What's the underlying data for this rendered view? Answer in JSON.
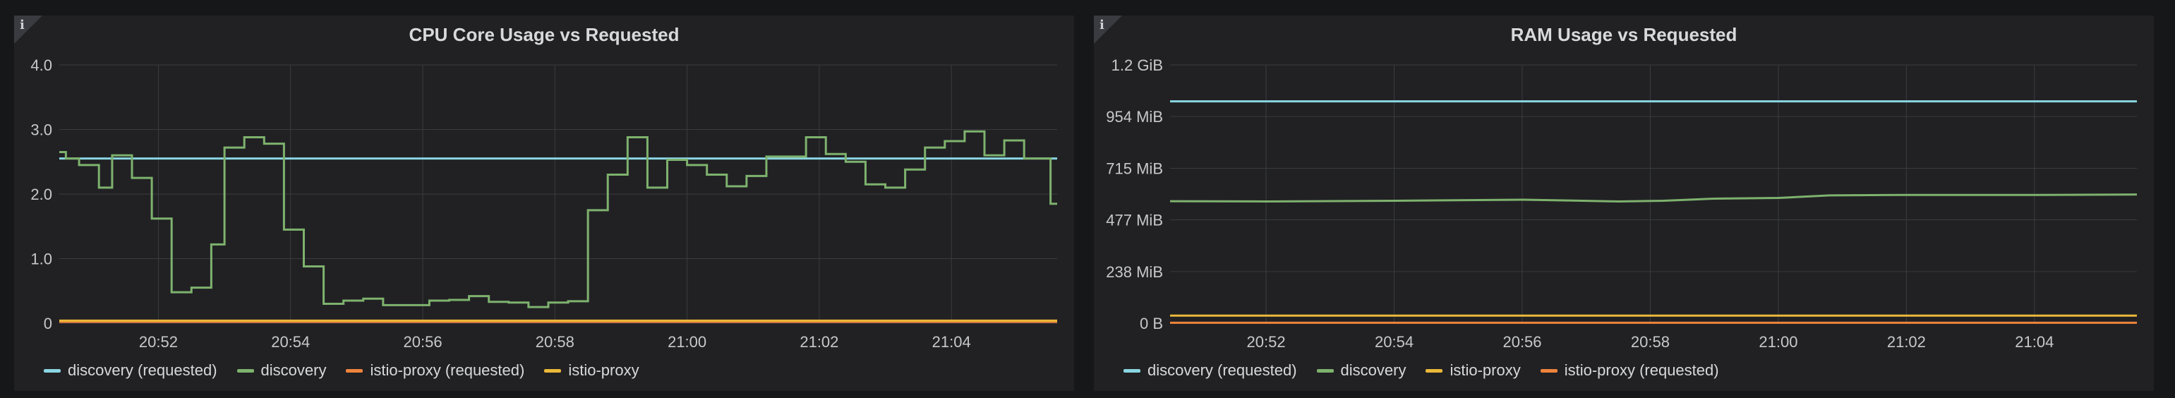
{
  "colors": {
    "background": "#161719",
    "panel": "#212124",
    "grid": "#3a3b3f",
    "text": "#d8d9da",
    "tick": "#c7c8ca",
    "discovery_requested": "#8ad6e2",
    "discovery": "#7eb26d",
    "istio_proxy": "#eab839",
    "istio_proxy_requested": "#ef843c"
  },
  "info_glyph": "i",
  "chart_data": [
    {
      "type": "line",
      "title": "CPU Core Usage vs Requested",
      "x_ticks": [
        "20:52",
        "20:54",
        "20:56",
        "20:58",
        "21:00",
        "21:02",
        "21:04"
      ],
      "x_tick_minutes": [
        52,
        54,
        56,
        58,
        60,
        62,
        64
      ],
      "xlim_minutes": [
        50.5,
        65.6
      ],
      "ylim": [
        0,
        4.0
      ],
      "y_ticks": [
        {
          "value": 0,
          "label": "0"
        },
        {
          "value": 1,
          "label": "1.0"
        },
        {
          "value": 2,
          "label": "2.0"
        },
        {
          "value": 3,
          "label": "3.0"
        },
        {
          "value": 4,
          "label": "4.0"
        }
      ],
      "legend_position": "bottom-left",
      "series": [
        {
          "name": "discovery (requested)",
          "color": "#8ad6e2",
          "step": false,
          "x": [
            50.5,
            65.6
          ],
          "y": [
            2.55,
            2.55
          ]
        },
        {
          "name": "discovery",
          "color": "#7eb26d",
          "step": true,
          "x": [
            50.5,
            50.6,
            50.8,
            51.1,
            51.3,
            51.6,
            51.9,
            52.2,
            52.5,
            52.8,
            53.0,
            53.3,
            53.6,
            53.9,
            54.2,
            54.5,
            54.8,
            55.1,
            55.4,
            55.8,
            56.1,
            56.4,
            56.7,
            57.0,
            57.3,
            57.6,
            57.9,
            58.2,
            58.5,
            58.8,
            59.1,
            59.4,
            59.7,
            60.0,
            60.3,
            60.6,
            60.9,
            61.2,
            61.5,
            61.8,
            62.1,
            62.4,
            62.7,
            63.0,
            63.3,
            63.6,
            63.9,
            64.2,
            64.5,
            64.8,
            65.1,
            65.5,
            65.6
          ],
          "y": [
            2.65,
            2.55,
            2.45,
            2.1,
            2.6,
            2.25,
            1.62,
            0.48,
            0.55,
            1.22,
            2.72,
            2.88,
            2.78,
            1.45,
            0.88,
            0.3,
            0.35,
            0.38,
            0.28,
            0.28,
            0.35,
            0.36,
            0.42,
            0.33,
            0.32,
            0.25,
            0.32,
            0.34,
            1.75,
            2.3,
            2.88,
            2.1,
            2.53,
            2.45,
            2.3,
            2.12,
            2.28,
            2.58,
            2.58,
            2.88,
            2.62,
            2.5,
            2.15,
            2.1,
            2.38,
            2.72,
            2.82,
            2.97,
            2.6,
            2.83,
            2.55,
            1.85,
            1.85
          ]
        },
        {
          "name": "istio-proxy (requested)",
          "color": "#ef843c",
          "step": false,
          "x": [
            50.5,
            65.6
          ],
          "y": [
            0.02,
            0.02
          ]
        },
        {
          "name": "istio-proxy",
          "color": "#eab839",
          "step": false,
          "x": [
            50.5,
            65.6
          ],
          "y": [
            0.04,
            0.04
          ]
        }
      ]
    },
    {
      "type": "line",
      "title": "RAM Usage vs Requested",
      "x_ticks": [
        "20:52",
        "20:54",
        "20:56",
        "20:58",
        "21:00",
        "21:02",
        "21:04"
      ],
      "x_tick_minutes": [
        52,
        54,
        56,
        58,
        60,
        62,
        64
      ],
      "xlim_minutes": [
        50.5,
        65.6
      ],
      "ylim_mib": [
        0,
        1192
      ],
      "y_ticks": [
        {
          "value": 0,
          "label": "0 B"
        },
        {
          "value": 238,
          "label": "238 MiB"
        },
        {
          "value": 477,
          "label": "477 MiB"
        },
        {
          "value": 715,
          "label": "715 MiB"
        },
        {
          "value": 954,
          "label": "954 MiB"
        },
        {
          "value": 1192,
          "label": "1.2 GiB"
        }
      ],
      "legend_position": "bottom-left",
      "series": [
        {
          "name": "discovery (requested)",
          "color": "#8ad6e2",
          "step": false,
          "x": [
            50.5,
            65.6
          ],
          "y": [
            1024,
            1024
          ]
        },
        {
          "name": "discovery",
          "color": "#7eb26d",
          "step": false,
          "x": [
            50.5,
            52.0,
            54.0,
            56.0,
            56.8,
            57.5,
            58.2,
            59.0,
            60.0,
            60.8,
            62.0,
            64.0,
            65.6
          ],
          "y": [
            563,
            562,
            565,
            570,
            566,
            562,
            565,
            575,
            578,
            590,
            592,
            592,
            594
          ]
        },
        {
          "name": "istio-proxy",
          "color": "#eab839",
          "step": false,
          "x": [
            50.5,
            65.6
          ],
          "y": [
            35,
            35
          ]
        },
        {
          "name": "istio-proxy (requested)",
          "color": "#ef843c",
          "step": false,
          "x": [
            50.5,
            65.6
          ],
          "y": [
            2,
            2
          ]
        }
      ]
    }
  ]
}
